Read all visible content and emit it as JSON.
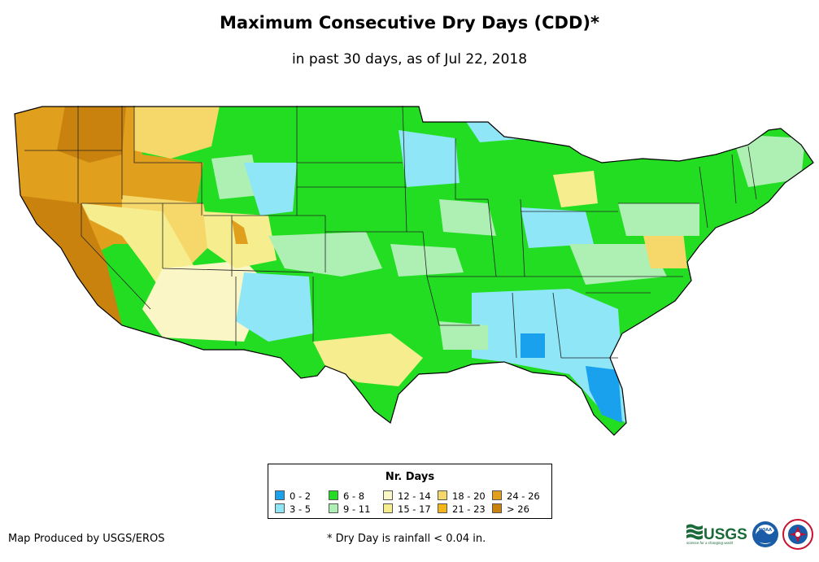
{
  "title": "Maximum Consecutive Dry Days (CDD)*",
  "subtitle": "in past 30 days, as of Jul 22, 2018",
  "legend": {
    "title": "Nr. Days",
    "items": [
      {
        "label": "0 - 2",
        "color": "#1aa1ee"
      },
      {
        "label": "3 - 5",
        "color": "#8ee6f7"
      },
      {
        "label": "6 - 8",
        "color": "#22dd22"
      },
      {
        "label": "9 - 11",
        "color": "#aef0b4"
      },
      {
        "label": "12 - 14",
        "color": "#fbf6c6"
      },
      {
        "label": "15 - 17",
        "color": "#f6ee8e"
      },
      {
        "label": "18 - 20",
        "color": "#f6d86a"
      },
      {
        "label": "21 - 23",
        "color": "#f5b615"
      },
      {
        "label": "24 - 26",
        "color": "#e0a01e"
      },
      {
        "label": "> 26",
        "color": "#c9820e"
      }
    ]
  },
  "credit": "Map Produced by USGS/EROS",
  "footnote": "* Dry Day is rainfall < 0.04 in.",
  "logos": {
    "usgs_text": "USGS",
    "usgs_tagline": "science for a changing world",
    "noaa_text": "NOAA"
  }
}
